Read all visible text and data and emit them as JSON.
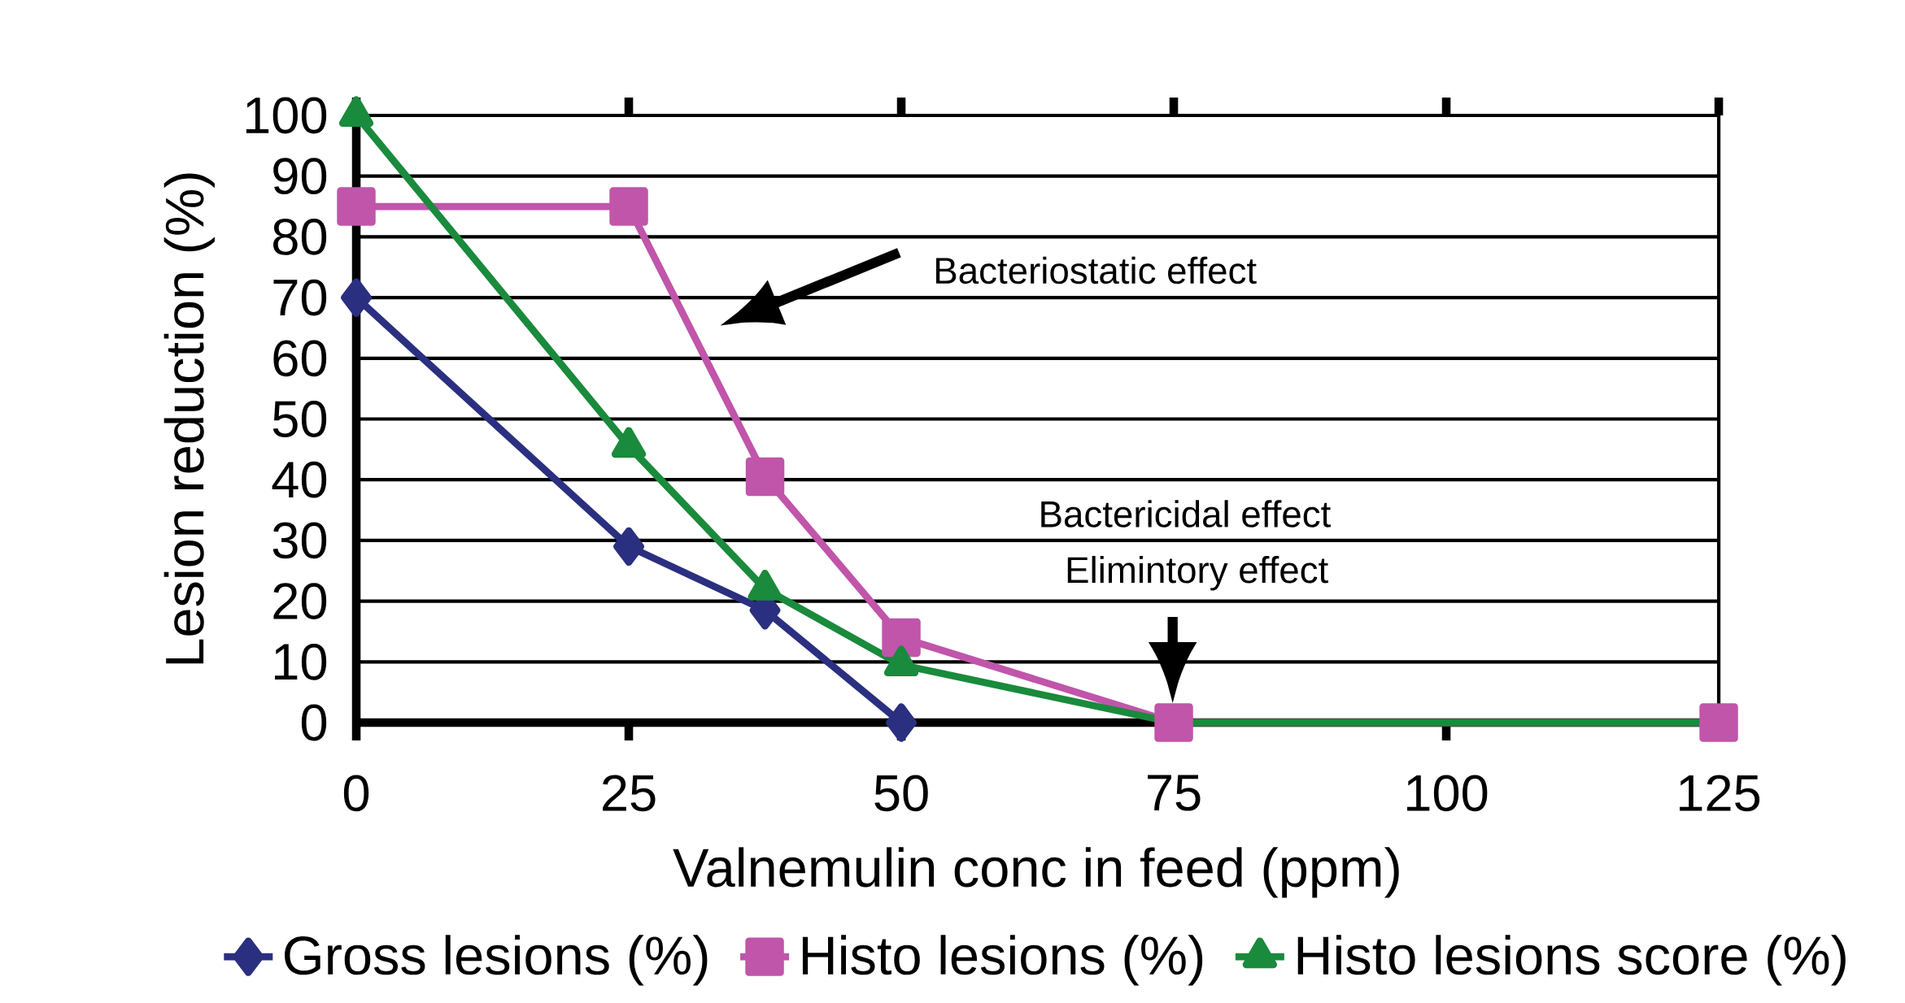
{
  "chart_data": {
    "type": "line",
    "xlabel": "Valnemulin conc in feed (ppm)",
    "ylabel": "Lesion reduction (%)",
    "x": [
      0,
      25,
      37.5,
      50,
      75,
      125
    ],
    "series": [
      {
        "name": "Gross lesions (%)",
        "color": "#2b2f80",
        "marker": "diamond",
        "values": [
          70,
          29,
          18.5,
          0,
          null,
          null
        ]
      },
      {
        "name": "Histo lesions (%)",
        "color": "#c055aa",
        "marker": "square",
        "values": [
          85,
          85,
          40.5,
          14,
          0,
          0
        ]
      },
      {
        "name": "Histo lesions score (%)",
        "color": "#1a8a3c",
        "marker": "triangle",
        "values": [
          100,
          45.5,
          22,
          9.5,
          0,
          0
        ]
      }
    ],
    "xlim": [
      0,
      125
    ],
    "xticks": [
      0,
      25,
      50,
      75,
      100,
      125
    ],
    "ylim": [
      0,
      100
    ],
    "yticks": [
      0,
      10,
      20,
      30,
      40,
      50,
      60,
      70,
      80,
      90,
      100
    ],
    "grid": "y",
    "legend": "bottom",
    "line_style": "solid",
    "annotations": [
      "Bacteriostatic effect",
      "Bactericidal effect",
      "Elimintory effect"
    ]
  }
}
